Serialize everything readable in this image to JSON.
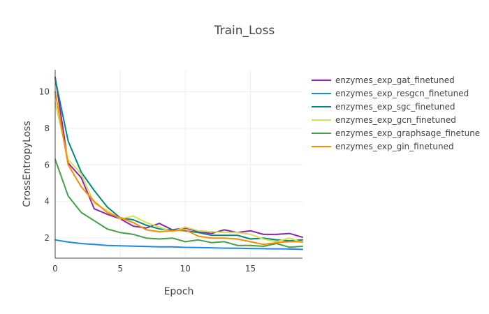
{
  "chart_data": {
    "type": "line",
    "title": "Train_Loss",
    "xlabel": "Epoch",
    "ylabel": "CrossEntropyLoss",
    "xlim": [
      0,
      19
    ],
    "ylim": [
      0.9,
      11.2
    ],
    "x_ticks": [
      0,
      5,
      10,
      15
    ],
    "y_ticks": [
      2,
      4,
      6,
      8,
      10
    ],
    "grid": true,
    "legend_position": "right",
    "x": [
      0,
      1,
      2,
      3,
      4,
      5,
      6,
      7,
      8,
      9,
      10,
      11,
      12,
      13,
      14,
      15,
      16,
      17,
      18,
      19
    ],
    "series": [
      {
        "name": "enzymes_exp_gat_finetuned",
        "color": "#8e24aa",
        "values": [
          10.8,
          6.1,
          5.3,
          3.6,
          3.3,
          3.05,
          2.65,
          2.55,
          2.8,
          2.45,
          2.55,
          2.35,
          2.25,
          2.45,
          2.3,
          2.4,
          2.2,
          2.2,
          2.25,
          2.05
        ]
      },
      {
        "name": "enzymes_exp_resgcn_finetuned",
        "color": "#1e88e5",
        "values": [
          1.9,
          1.78,
          1.7,
          1.65,
          1.6,
          1.58,
          1.56,
          1.54,
          1.52,
          1.52,
          1.49,
          1.48,
          1.47,
          1.45,
          1.44,
          1.43,
          1.42,
          1.41,
          1.4,
          1.38
        ]
      },
      {
        "name": "enzymes_exp_sgc_finetuned",
        "color": "#00897b",
        "values": [
          10.7,
          7.3,
          5.6,
          4.6,
          3.7,
          3.1,
          3.0,
          2.7,
          2.5,
          2.45,
          2.4,
          2.3,
          2.15,
          2.15,
          2.15,
          1.95,
          2.0,
          1.9,
          1.85,
          1.9
        ]
      },
      {
        "name": "enzymes_exp_gcn_finetuned",
        "color": "#d4e157",
        "values": [
          9.4,
          6.3,
          5.5,
          3.9,
          3.5,
          3.05,
          3.2,
          2.85,
          2.6,
          2.35,
          2.6,
          2.4,
          2.35,
          2.3,
          2.3,
          2.2,
          1.95,
          1.8,
          2.0,
          1.75
        ]
      },
      {
        "name": "enzymes_exp_graphsage_finetune",
        "color": "#43a047",
        "values": [
          6.3,
          4.3,
          3.4,
          2.95,
          2.5,
          2.3,
          2.2,
          2.0,
          1.95,
          2.0,
          1.8,
          1.9,
          1.75,
          1.8,
          1.6,
          1.6,
          1.55,
          1.7,
          1.5,
          1.55
        ]
      },
      {
        "name": "enzymes_exp_gin_finetuned",
        "color": "#fb8c00",
        "values": [
          10.0,
          6.0,
          4.8,
          4.0,
          3.4,
          3.1,
          2.85,
          2.45,
          2.35,
          2.4,
          2.45,
          2.1,
          2.0,
          2.0,
          1.95,
          1.8,
          1.65,
          1.75,
          1.8,
          1.8
        ]
      }
    ]
  }
}
